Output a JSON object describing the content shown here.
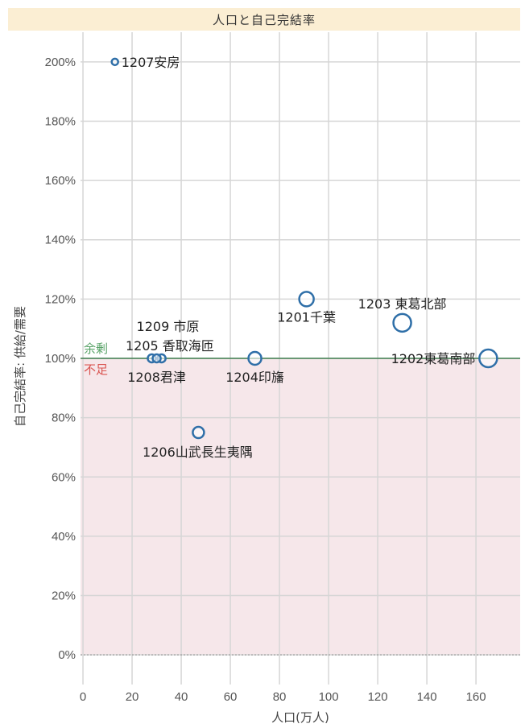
{
  "chart_data": {
    "type": "scatter",
    "title": "人口と自己完結率",
    "xlabel": "人口(万人)",
    "ylabel": "自己完結率: 供給/需要",
    "xlim": [
      -1,
      178
    ],
    "ylim": [
      -10,
      210
    ],
    "x_ticks": [
      0,
      20,
      40,
      60,
      80,
      100,
      120,
      140,
      160
    ],
    "y_ticks": [
      0,
      20,
      40,
      60,
      80,
      100,
      120,
      140,
      160,
      180,
      200
    ],
    "y_tick_labels": [
      "0%",
      "20%",
      "40%",
      "60%",
      "80%",
      "100%",
      "120%",
      "140%",
      "160%",
      "180%",
      "200%"
    ],
    "grid": true,
    "reference_line": {
      "y": 100,
      "above_label": "余剰",
      "below_label": "不足",
      "above_color": "#5aa469",
      "below_color": "#d9534f"
    },
    "points": [
      {
        "label": "1207安房",
        "x": 13,
        "y": 200,
        "size": 4
      },
      {
        "label": "1201千葉",
        "x": 91,
        "y": 120,
        "size": 9
      },
      {
        "label": "1203 東葛北部",
        "x": 130,
        "y": 112,
        "size": 11
      },
      {
        "label": "1209 市原",
        "x": 28,
        "y": 100,
        "size": 5
      },
      {
        "label": "1205 香取海匝",
        "x": 32,
        "y": 100,
        "size": 5
      },
      {
        "label": "1208君津",
        "x": 30,
        "y": 100,
        "size": 5
      },
      {
        "label": "1204印旛",
        "x": 70,
        "y": 100,
        "size": 8
      },
      {
        "label": "1202東葛南部",
        "x": 165,
        "y": 100,
        "size": 11
      },
      {
        "label": "1206山武長生夷隅",
        "x": 47,
        "y": 75,
        "size": 7
      }
    ],
    "point_color": "#2f6fa8"
  }
}
